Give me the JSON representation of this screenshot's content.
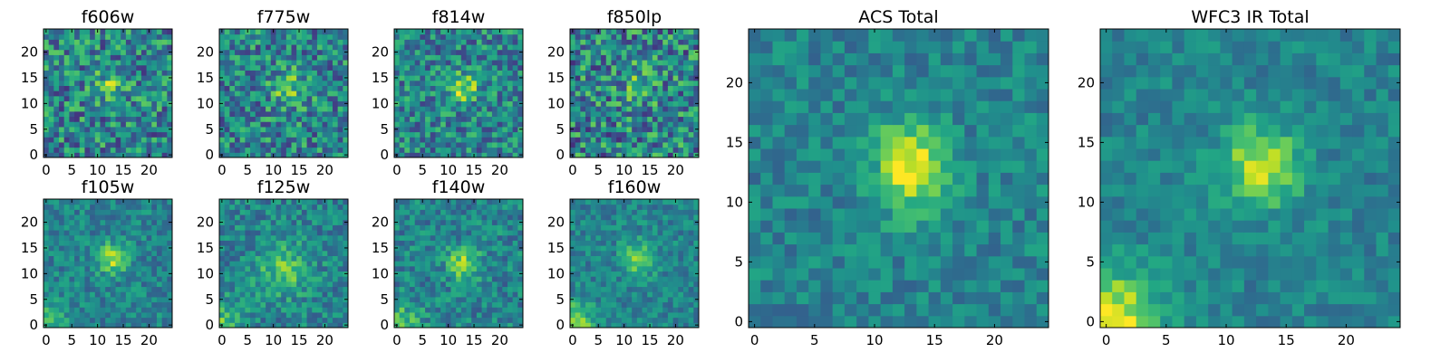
{
  "chart_data": [
    {
      "type": "heatmap",
      "title": "f606w",
      "xticks": [
        0,
        5,
        10,
        15,
        20
      ],
      "yticks": [
        0,
        5,
        10,
        15,
        20
      ],
      "xlim": [
        0,
        25
      ],
      "ylim": [
        0,
        25
      ],
      "grid_size": 25,
      "colormap": "viridis",
      "peak": [
        13,
        14
      ],
      "sigma": [
        2.2,
        2.2
      ],
      "amplitude": 0.28,
      "noise": 0.3,
      "seed": 11
    },
    {
      "type": "heatmap",
      "title": "f775w",
      "xticks": [
        0,
        5,
        10,
        15,
        20
      ],
      "yticks": [
        0,
        5,
        10,
        15,
        20
      ],
      "xlim": [
        0,
        25
      ],
      "ylim": [
        0,
        25
      ],
      "grid_size": 25,
      "colormap": "viridis",
      "peak": [
        13,
        13
      ],
      "sigma": [
        2.4,
        2.4
      ],
      "amplitude": 0.3,
      "noise": 0.28,
      "seed": 23
    },
    {
      "type": "heatmap",
      "title": "f814w",
      "xticks": [
        0,
        5,
        10,
        15,
        20
      ],
      "yticks": [
        0,
        5,
        10,
        15,
        20
      ],
      "xlim": [
        0,
        25
      ],
      "ylim": [
        0,
        25
      ],
      "grid_size": 25,
      "colormap": "viridis",
      "peak": [
        13,
        13
      ],
      "sigma": [
        2.0,
        2.0
      ],
      "amplitude": 0.4,
      "noise": 0.26,
      "seed": 37
    },
    {
      "type": "heatmap",
      "title": "f850lp",
      "xticks": [
        0,
        5,
        10,
        15,
        20
      ],
      "yticks": [
        0,
        5,
        10,
        15,
        20
      ],
      "xlim": [
        0,
        25
      ],
      "ylim": [
        0,
        25
      ],
      "grid_size": 25,
      "colormap": "viridis",
      "peak": [
        13,
        14
      ],
      "sigma": [
        2.4,
        2.4
      ],
      "amplitude": 0.24,
      "noise": 0.32,
      "seed": 41
    },
    {
      "type": "heatmap",
      "title": "f105w",
      "xticks": [
        0,
        5,
        10,
        15,
        20
      ],
      "yticks": [
        0,
        5,
        10,
        15,
        20
      ],
      "xlim": [
        0,
        25
      ],
      "ylim": [
        0,
        25
      ],
      "grid_size": 25,
      "colormap": "viridis",
      "peak": [
        13,
        13
      ],
      "sigma": [
        2.0,
        2.0
      ],
      "amplitude": 0.42,
      "noise": 0.16,
      "seed": 53,
      "corner_glow": 0.25
    },
    {
      "type": "heatmap",
      "title": "f125w",
      "xticks": [
        0,
        5,
        10,
        15,
        20
      ],
      "yticks": [
        0,
        5,
        10,
        15,
        20
      ],
      "xlim": [
        0,
        25
      ],
      "ylim": [
        0,
        25
      ],
      "grid_size": 25,
      "colormap": "viridis",
      "peak": [
        12,
        11
      ],
      "sigma": [
        3.5,
        3.5
      ],
      "amplitude": 0.28,
      "noise": 0.18,
      "seed": 67,
      "corner_glow": 0.3
    },
    {
      "type": "heatmap",
      "title": "f140w",
      "xticks": [
        0,
        5,
        10,
        15,
        20
      ],
      "yticks": [
        0,
        5,
        10,
        15,
        20
      ],
      "xlim": [
        0,
        25
      ],
      "ylim": [
        0,
        25
      ],
      "grid_size": 25,
      "colormap": "viridis",
      "peak": [
        13,
        12
      ],
      "sigma": [
        2.2,
        2.2
      ],
      "amplitude": 0.4,
      "noise": 0.18,
      "seed": 71,
      "corner_glow": 0.3
    },
    {
      "type": "heatmap",
      "title": "f160w",
      "xticks": [
        0,
        5,
        10,
        15,
        20
      ],
      "yticks": [
        0,
        5,
        10,
        15,
        20
      ],
      "xlim": [
        0,
        25
      ],
      "ylim": [
        0,
        25
      ],
      "grid_size": 25,
      "colormap": "viridis",
      "peak": [
        13,
        13
      ],
      "sigma": [
        2.3,
        2.3
      ],
      "amplitude": 0.34,
      "noise": 0.15,
      "seed": 89,
      "corner_glow": 0.4
    },
    {
      "type": "heatmap",
      "title": "ACS Total",
      "xticks": [
        0,
        5,
        10,
        15,
        20
      ],
      "yticks": [
        0,
        5,
        10,
        15,
        20
      ],
      "xlim": [
        0,
        25
      ],
      "ylim": [
        0,
        25
      ],
      "grid_size": 25,
      "colormap": "viridis",
      "peak": [
        13,
        13
      ],
      "sigma": [
        2.0,
        2.6
      ],
      "amplitude": 0.55,
      "noise": 0.14,
      "seed": 97
    },
    {
      "type": "heatmap",
      "title": "WFC3 IR Total",
      "xticks": [
        0,
        5,
        10,
        15,
        20
      ],
      "yticks": [
        0,
        5,
        10,
        15,
        20
      ],
      "xlim": [
        0,
        25
      ],
      "ylim": [
        0,
        25
      ],
      "grid_size": 25,
      "colormap": "viridis",
      "peak": [
        13,
        13
      ],
      "sigma": [
        2.3,
        2.3
      ],
      "amplitude": 0.48,
      "noise": 0.12,
      "seed": 101,
      "corner_glow": 0.55
    }
  ]
}
